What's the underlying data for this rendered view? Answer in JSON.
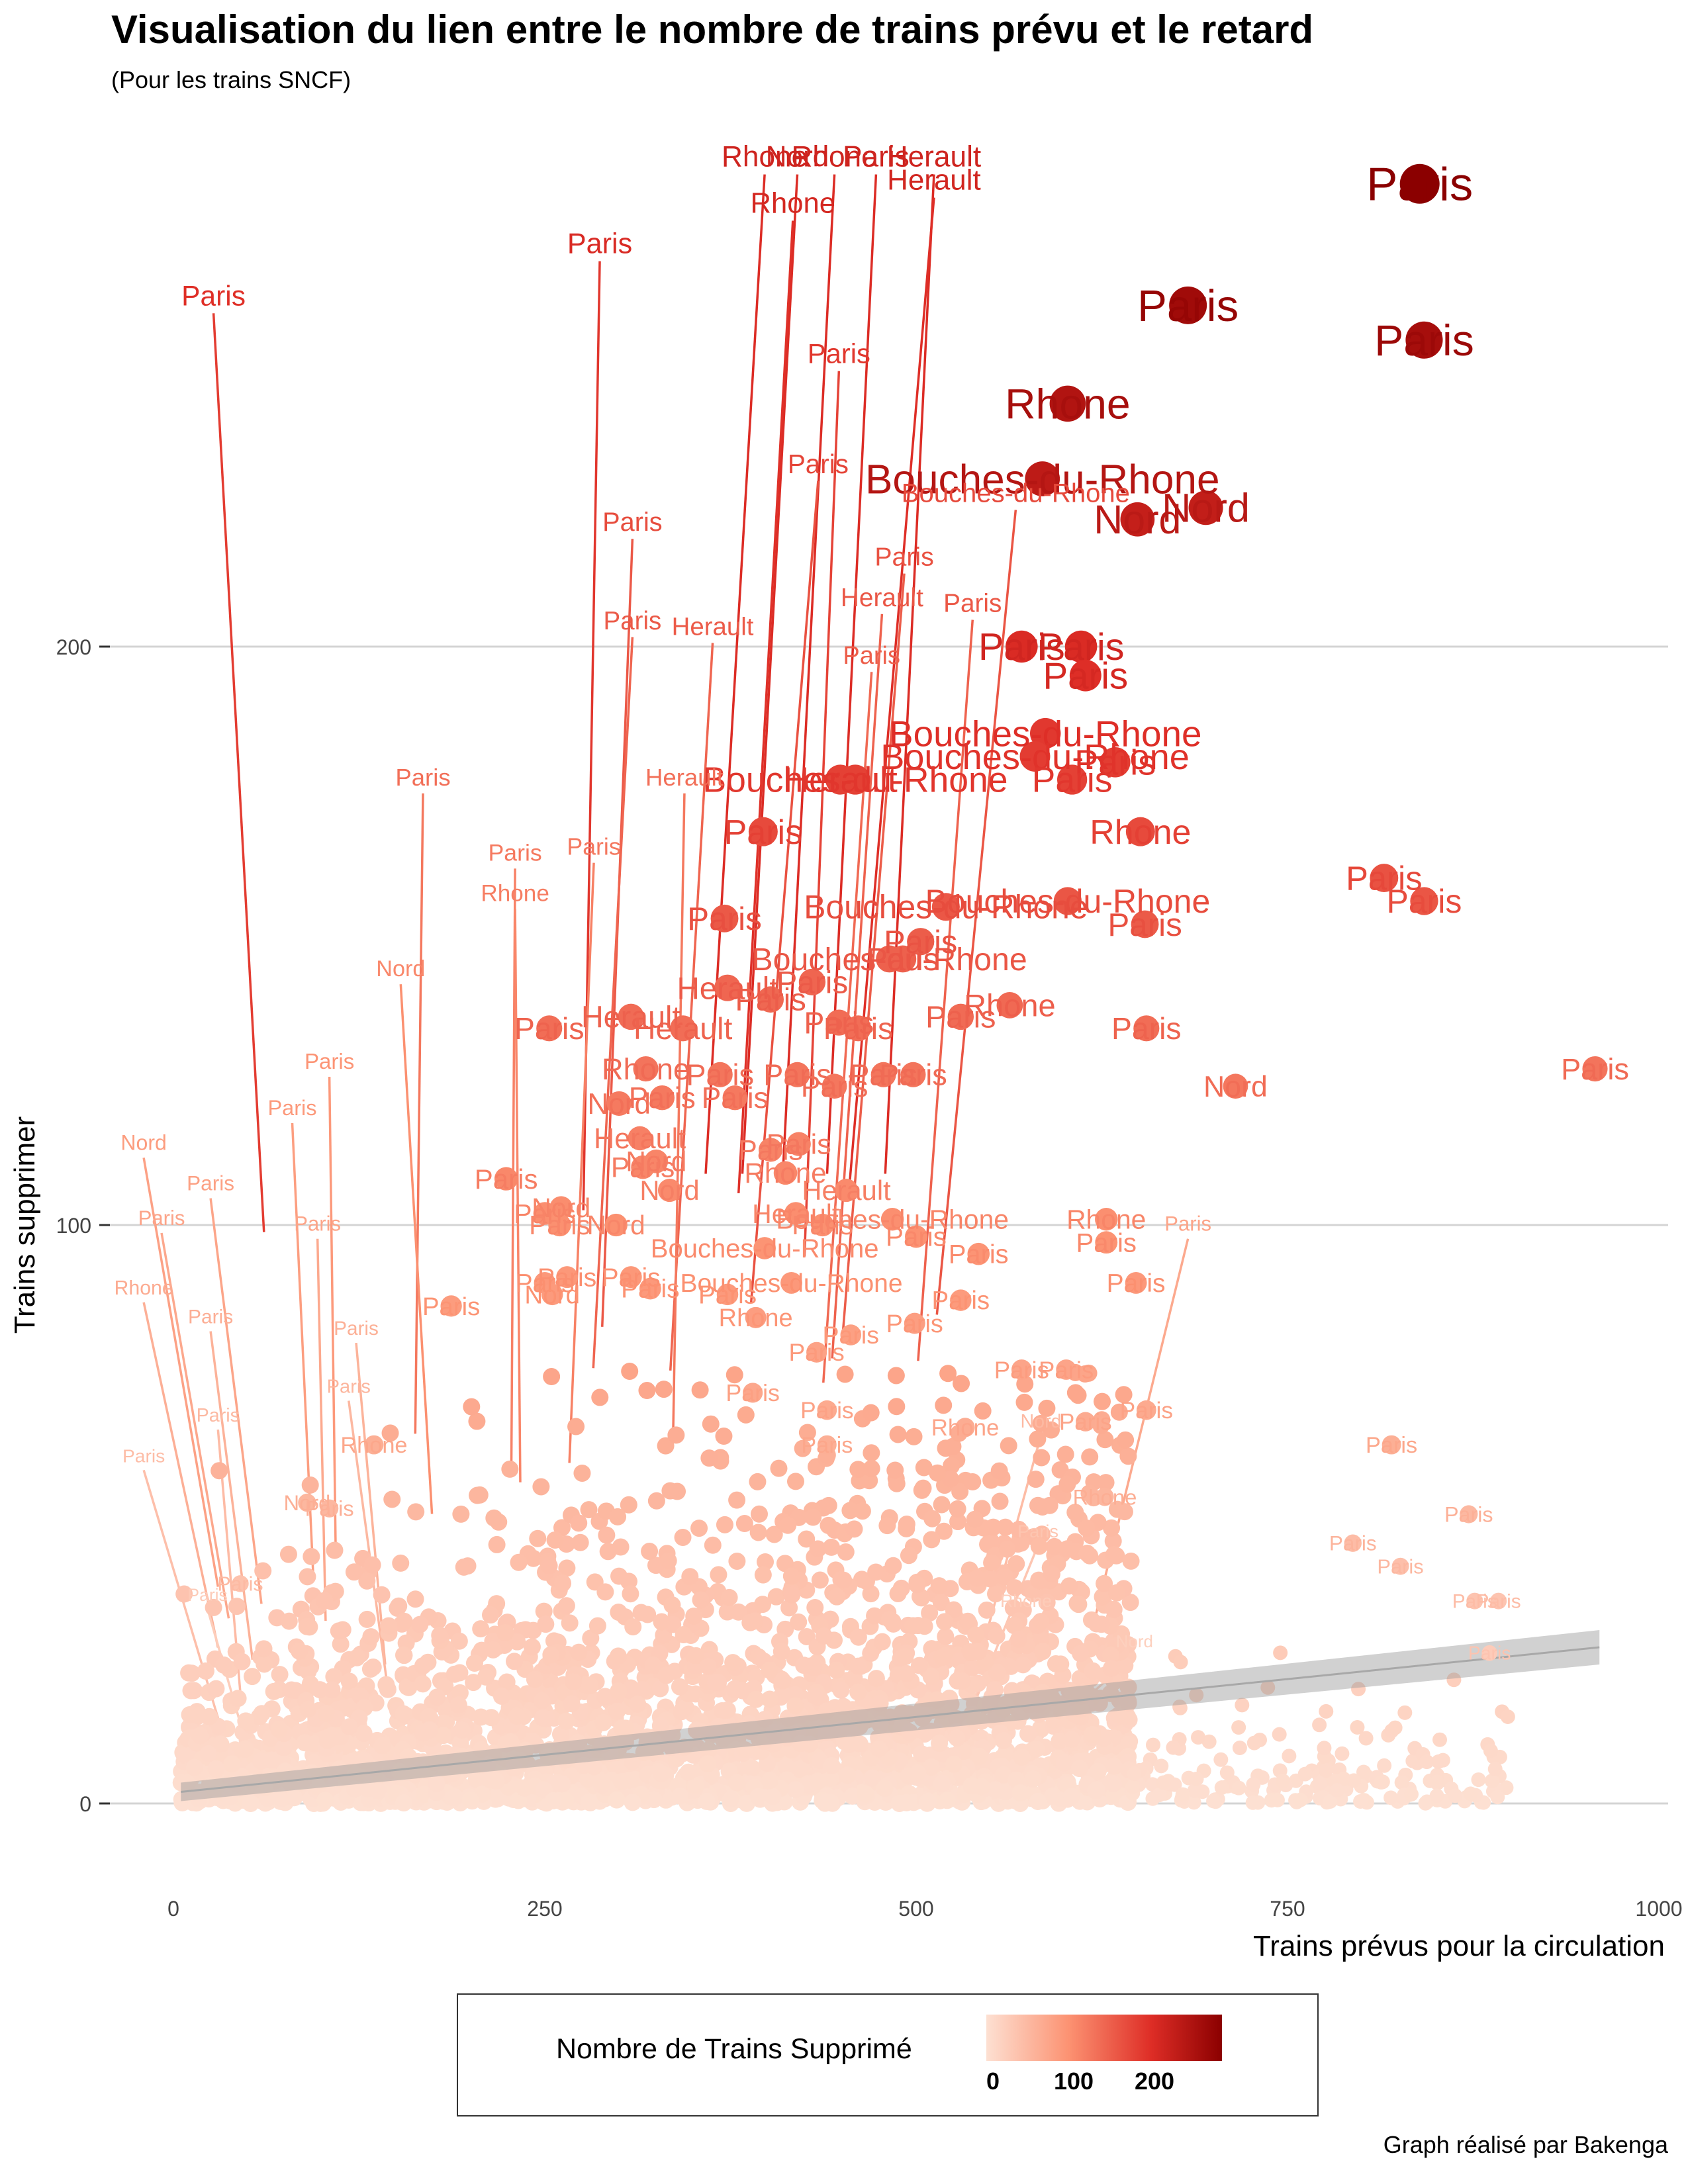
{
  "chart_data": {
    "type": "scatter",
    "title": "Visualisation du lien entre le nombre de trains prévu et le retard",
    "subtitle": "(Pour les trains SNCF)",
    "xlabel": "Trains prévus pour la circulation",
    "ylabel": "Trains supprimer",
    "xlim": [
      -20,
      1000
    ],
    "ylim": [
      -12,
      290
    ],
    "x_ticks": [
      0,
      250,
      500,
      750,
      1000
    ],
    "x_tick_labels": [
      "0",
      "250",
      "500",
      "750",
      "1000"
    ],
    "y_ticks": [
      0,
      100,
      200
    ],
    "y_tick_labels": [
      "0",
      "100",
      "200"
    ],
    "grid": "horizontal major",
    "legend": {
      "title": "Nombre de Trains Supprimé",
      "position": "bottom",
      "ticks": [
        0,
        100,
        200
      ],
      "tick_labels": [
        "0",
        "100",
        "200"
      ],
      "color_low": "#fde0d2",
      "color_high": "#8b0000",
      "range": [
        0,
        280
      ]
    },
    "trend_line": {
      "method": "linear",
      "x": [
        5,
        960
      ],
      "y": [
        2,
        27
      ]
    },
    "points": [
      {
        "x": 839,
        "y": 280,
        "label": "Paris"
      },
      {
        "x": 683,
        "y": 259,
        "label": "Paris"
      },
      {
        "x": 842,
        "y": 253,
        "label": "Paris"
      },
      {
        "x": 602,
        "y": 242,
        "label": "Rhone"
      },
      {
        "x": 585,
        "y": 229,
        "label": "Bouches-du-Rhone"
      },
      {
        "x": 649,
        "y": 222,
        "label": "Nord"
      },
      {
        "x": 695,
        "y": 224,
        "label": "Nord"
      },
      {
        "x": 571,
        "y": 200,
        "label": "Paris"
      },
      {
        "x": 611,
        "y": 200,
        "label": "Paris"
      },
      {
        "x": 614,
        "y": 195,
        "label": "Paris"
      },
      {
        "x": 587,
        "y": 185,
        "label": "Bouches-du-Rhone"
      },
      {
        "x": 580,
        "y": 181,
        "label": "Bouches-du-Rhone"
      },
      {
        "x": 634,
        "y": 180,
        "label": "Paris"
      },
      {
        "x": 605,
        "y": 177,
        "label": "Paris"
      },
      {
        "x": 651,
        "y": 168,
        "label": "Rhone"
      },
      {
        "x": 815,
        "y": 160,
        "label": "Paris"
      },
      {
        "x": 842,
        "y": 156,
        "label": "Paris"
      },
      {
        "x": 602,
        "y": 156,
        "label": "Bouches-du-Rhone"
      },
      {
        "x": 654,
        "y": 152,
        "label": "Paris"
      },
      {
        "x": 957,
        "y": 127,
        "label": "Paris"
      },
      {
        "x": 715,
        "y": 124,
        "label": "Nord"
      },
      {
        "x": 655,
        "y": 134,
        "label": "Paris"
      },
      {
        "x": 563,
        "y": 138,
        "label": "Rhone"
      },
      {
        "x": 530,
        "y": 136,
        "label": "Paris"
      },
      {
        "x": 520,
        "y": 155,
        "label": "Bouches-du-Rhone"
      },
      {
        "x": 503,
        "y": 149,
        "label": "Paris"
      },
      {
        "x": 491,
        "y": 146,
        "label": "Paris"
      },
      {
        "x": 482,
        "y": 146,
        "label": "Bouches-du-Rhone"
      },
      {
        "x": 430,
        "y": 142,
        "label": "Paris"
      },
      {
        "x": 448,
        "y": 135,
        "label": "Paris"
      },
      {
        "x": 461,
        "y": 134,
        "label": "Paris"
      },
      {
        "x": 397,
        "y": 168,
        "label": "Paris"
      },
      {
        "x": 449,
        "y": 177,
        "label": "Herault"
      },
      {
        "x": 459,
        "y": 177,
        "label": "Bouches-du-Rhone"
      },
      {
        "x": 371,
        "y": 153,
        "label": "Paris"
      },
      {
        "x": 373,
        "y": 141,
        "label": "Herault"
      },
      {
        "x": 402,
        "y": 139,
        "label": "Paris"
      },
      {
        "x": 308,
        "y": 136,
        "label": "Herault"
      },
      {
        "x": 343,
        "y": 134,
        "label": "Herault"
      },
      {
        "x": 253,
        "y": 134,
        "label": "Paris"
      },
      {
        "x": 318,
        "y": 127,
        "label": "Rhone"
      },
      {
        "x": 368,
        "y": 126,
        "label": "Paris"
      },
      {
        "x": 420,
        "y": 126,
        "label": "Paris"
      },
      {
        "x": 445,
        "y": 124,
        "label": "Paris"
      },
      {
        "x": 478,
        "y": 126,
        "label": "Paris"
      },
      {
        "x": 498,
        "y": 126,
        "label": "Paris"
      },
      {
        "x": 300,
        "y": 121,
        "label": "Nord"
      },
      {
        "x": 329,
        "y": 122,
        "label": "Paris"
      },
      {
        "x": 378,
        "y": 122,
        "label": "Paris"
      },
      {
        "x": 314,
        "y": 115,
        "label": "Herault"
      },
      {
        "x": 402,
        "y": 113,
        "label": "Paris"
      },
      {
        "x": 421,
        "y": 114,
        "label": "Paris"
      },
      {
        "x": 325,
        "y": 111,
        "label": "Nord"
      },
      {
        "x": 316,
        "y": 110,
        "label": "Paris"
      },
      {
        "x": 334,
        "y": 106,
        "label": "Nord"
      },
      {
        "x": 412,
        "y": 109,
        "label": "Rhone"
      },
      {
        "x": 453,
        "y": 106,
        "label": "Herault"
      },
      {
        "x": 224,
        "y": 108,
        "label": "Paris"
      },
      {
        "x": 261,
        "y": 103,
        "label": "Nord"
      },
      {
        "x": 250,
        "y": 102,
        "label": "Paris"
      },
      {
        "x": 419,
        "y": 102,
        "label": "Herault"
      },
      {
        "x": 484,
        "y": 101,
        "label": "Bouches-du-Rhone"
      },
      {
        "x": 628,
        "y": 101,
        "label": "Rhone"
      },
      {
        "x": 260,
        "y": 100,
        "label": "Paris"
      },
      {
        "x": 298,
        "y": 100,
        "label": "Nord"
      },
      {
        "x": 437,
        "y": 100,
        "label": "Paris"
      },
      {
        "x": 500,
        "y": 98,
        "label": "Paris"
      },
      {
        "x": 628,
        "y": 97,
        "label": "Paris"
      },
      {
        "x": 398,
        "y": 96,
        "label": "Bouches-du-Rhone"
      },
      {
        "x": 542,
        "y": 95,
        "label": "Paris"
      },
      {
        "x": 250,
        "y": 90,
        "label": "Paris"
      },
      {
        "x": 265,
        "y": 91,
        "label": "Paris"
      },
      {
        "x": 308,
        "y": 91,
        "label": "Paris"
      },
      {
        "x": 255,
        "y": 88,
        "label": "Nord"
      },
      {
        "x": 321,
        "y": 89,
        "label": "Paris"
      },
      {
        "x": 416,
        "y": 90,
        "label": "Bouches-du-Rhone"
      },
      {
        "x": 648,
        "y": 90,
        "label": "Paris"
      },
      {
        "x": 187,
        "y": 86,
        "label": "Paris"
      },
      {
        "x": 373,
        "y": 88,
        "label": "Paris"
      },
      {
        "x": 530,
        "y": 87,
        "label": "Paris"
      },
      {
        "x": 499,
        "y": 83,
        "label": "Paris"
      },
      {
        "x": 392,
        "y": 84,
        "label": "Rhone"
      },
      {
        "x": 456,
        "y": 81,
        "label": "Paris"
      },
      {
        "x": 433,
        "y": 78,
        "label": "Paris"
      },
      {
        "x": 571,
        "y": 75,
        "label": "Paris"
      },
      {
        "x": 601,
        "y": 75,
        "label": "Paris"
      },
      {
        "x": 390,
        "y": 71,
        "label": "Paris"
      },
      {
        "x": 440,
        "y": 68,
        "label": "Paris"
      },
      {
        "x": 533,
        "y": 65,
        "label": "Rhone"
      },
      {
        "x": 614,
        "y": 66,
        "label": "Paris"
      },
      {
        "x": 655,
        "y": 68,
        "label": "Paris"
      },
      {
        "x": 820,
        "y": 62,
        "label": "Paris"
      },
      {
        "x": 440,
        "y": 62,
        "label": "Paris"
      },
      {
        "x": 872,
        "y": 50,
        "label": "Paris"
      },
      {
        "x": 627,
        "y": 53,
        "label": "Rhone"
      },
      {
        "x": 794,
        "y": 45,
        "label": "Paris"
      },
      {
        "x": 826,
        "y": 41,
        "label": "Paris"
      },
      {
        "x": 876,
        "y": 35,
        "label": "Paris"
      },
      {
        "x": 892,
        "y": 35,
        "label": "Paris"
      },
      {
        "x": 886,
        "y": 26,
        "label": "Paris"
      },
      {
        "x": 45,
        "y": 38,
        "label": "Paris"
      },
      {
        "x": 90,
        "y": 52,
        "label": "Nord"
      },
      {
        "x": 105,
        "y": 51,
        "label": "Paris"
      },
      {
        "x": 135,
        "y": 62,
        "label": "Rhone"
      }
    ],
    "leader_labels": [
      {
        "label": "Rhone",
        "x": 398,
        "y": 283
      },
      {
        "label": "Nord",
        "x": 420,
        "y": 283
      },
      {
        "label": "Rhone",
        "x": 445,
        "y": 283
      },
      {
        "label": "Paris",
        "x": 473,
        "y": 283
      },
      {
        "label": "Herault",
        "x": 512,
        "y": 283
      },
      {
        "label": "Herault",
        "x": 512,
        "y": 279
      },
      {
        "label": "Rhone",
        "x": 417,
        "y": 275
      },
      {
        "label": "Paris",
        "x": 287,
        "y": 268
      },
      {
        "label": "Paris",
        "x": 27,
        "y": 259
      },
      {
        "label": "Paris",
        "x": 448,
        "y": 249
      },
      {
        "label": "Paris",
        "x": 434,
        "y": 230
      },
      {
        "label": "Paris",
        "x": 309,
        "y": 220
      },
      {
        "label": "Paris",
        "x": 492,
        "y": 214
      },
      {
        "label": "Herault",
        "x": 477,
        "y": 207
      },
      {
        "label": "Paris",
        "x": 538,
        "y": 206
      },
      {
        "label": "Paris",
        "x": 309,
        "y": 203
      },
      {
        "label": "Herault",
        "x": 363,
        "y": 202
      },
      {
        "label": "Bouches-du-Rhone",
        "x": 567,
        "y": 225
      },
      {
        "label": "Paris",
        "x": 470,
        "y": 197
      },
      {
        "label": "Herault",
        "x": 344,
        "y": 176
      },
      {
        "label": "Paris",
        "x": 168,
        "y": 176
      },
      {
        "label": "Paris",
        "x": 283,
        "y": 164
      },
      {
        "label": "Paris",
        "x": 230,
        "y": 163
      },
      {
        "label": "Rhone",
        "x": 230,
        "y": 156
      },
      {
        "label": "Nord",
        "x": 153,
        "y": 143
      },
      {
        "label": "Paris",
        "x": 105,
        "y": 127
      },
      {
        "label": "Paris",
        "x": 80,
        "y": 119
      },
      {
        "label": "Nord",
        "x": -20,
        "y": 113
      },
      {
        "label": "Paris",
        "x": 25,
        "y": 106
      },
      {
        "label": "Paris",
        "x": -8,
        "y": 100
      },
      {
        "label": "Paris",
        "x": 97,
        "y": 99
      },
      {
        "label": "Rhone",
        "x": -20,
        "y": 88
      },
      {
        "label": "Paris",
        "x": 25,
        "y": 83
      },
      {
        "label": "Paris",
        "x": 123,
        "y": 81
      },
      {
        "label": "Paris",
        "x": 118,
        "y": 71
      },
      {
        "label": "Paris",
        "x": 30,
        "y": 66
      },
      {
        "label": "Paris",
        "x": -20,
        "y": 59
      },
      {
        "label": "Paris",
        "x": 23,
        "y": 35
      },
      {
        "label": "Nord",
        "x": 584,
        "y": 65
      },
      {
        "label": "Paris",
        "x": 683,
        "y": 99
      },
      {
        "label": "Nord",
        "x": 647,
        "y": 27
      },
      {
        "label": "Rhone",
        "x": 574,
        "y": 34
      },
      {
        "label": "Paris",
        "x": 582,
        "y": 46
      }
    ]
  },
  "caption": "Graph réalisé par Bakenga"
}
